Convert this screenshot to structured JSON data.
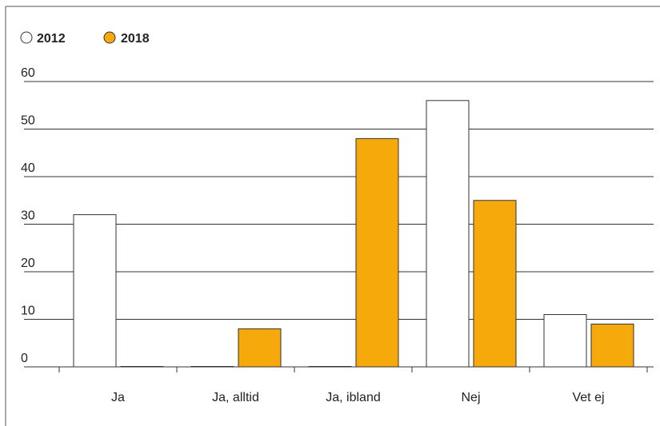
{
  "colors": {
    "series_2012_fill": "#ffffff",
    "series_2018_fill": "#f5a90a",
    "bar_stroke": "#333333",
    "gridline": "#333333",
    "frame": "#555555"
  },
  "chart_data": {
    "type": "bar",
    "title": "",
    "xlabel": "",
    "ylabel": "",
    "categories": [
      "Ja",
      "Ja, alltid",
      "Ja, ibland",
      "Nej",
      "Vet ej"
    ],
    "series": [
      {
        "name": "2012",
        "values": [
          32,
          0,
          0,
          56,
          11
        ]
      },
      {
        "name": "2018",
        "values": [
          0,
          8,
          48,
          35,
          9
        ]
      }
    ],
    "ylim": [
      0,
      60
    ],
    "yticks": [
      "0",
      "10",
      "20",
      "30",
      "40",
      "50",
      "60"
    ],
    "grid": true,
    "legend_position": "top-left"
  }
}
